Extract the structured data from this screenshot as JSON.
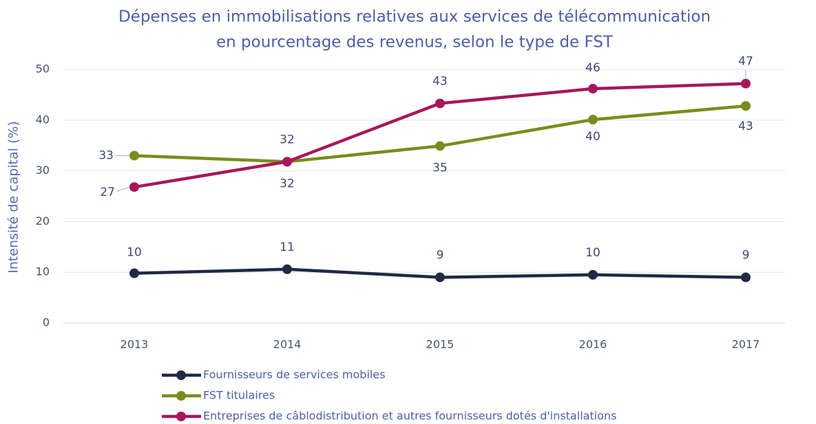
{
  "chart_data": {
    "type": "line",
    "title": [
      "Dépenses en immobilisations relatives aux services de télécommunication",
      "en pourcentage des revenus, selon le type de FST"
    ],
    "y_label": "Intensité de capital (%)",
    "categories": [
      "2013",
      "2014",
      "2015",
      "2016",
      "2017"
    ],
    "ylim": [
      0,
      50
    ],
    "yticks": [
      0,
      10,
      20,
      30,
      40,
      50
    ],
    "grid": true,
    "series": [
      {
        "name": "Fournisseurs de services mobiles",
        "color": "#1f2a44",
        "values": [
          9.8,
          10.6,
          9.0,
          9.5,
          9.0
        ],
        "value_labels": [
          "10",
          "11",
          "9",
          "10",
          "9"
        ]
      },
      {
        "name": "FST titulaires",
        "color": "#7a8c1e",
        "values": [
          33.0,
          31.8,
          34.9,
          40.1,
          42.8
        ],
        "value_labels": [
          "33",
          "32",
          "35",
          "40",
          "43"
        ]
      },
      {
        "name": "Entreprises de câblodistribution et autres fournisseurs dotés d'installations",
        "color": "#a8175a",
        "values": [
          26.8,
          31.8,
          43.3,
          46.2,
          47.2
        ],
        "value_labels": [
          "27",
          "32",
          "43",
          "46",
          "47"
        ]
      }
    ]
  }
}
